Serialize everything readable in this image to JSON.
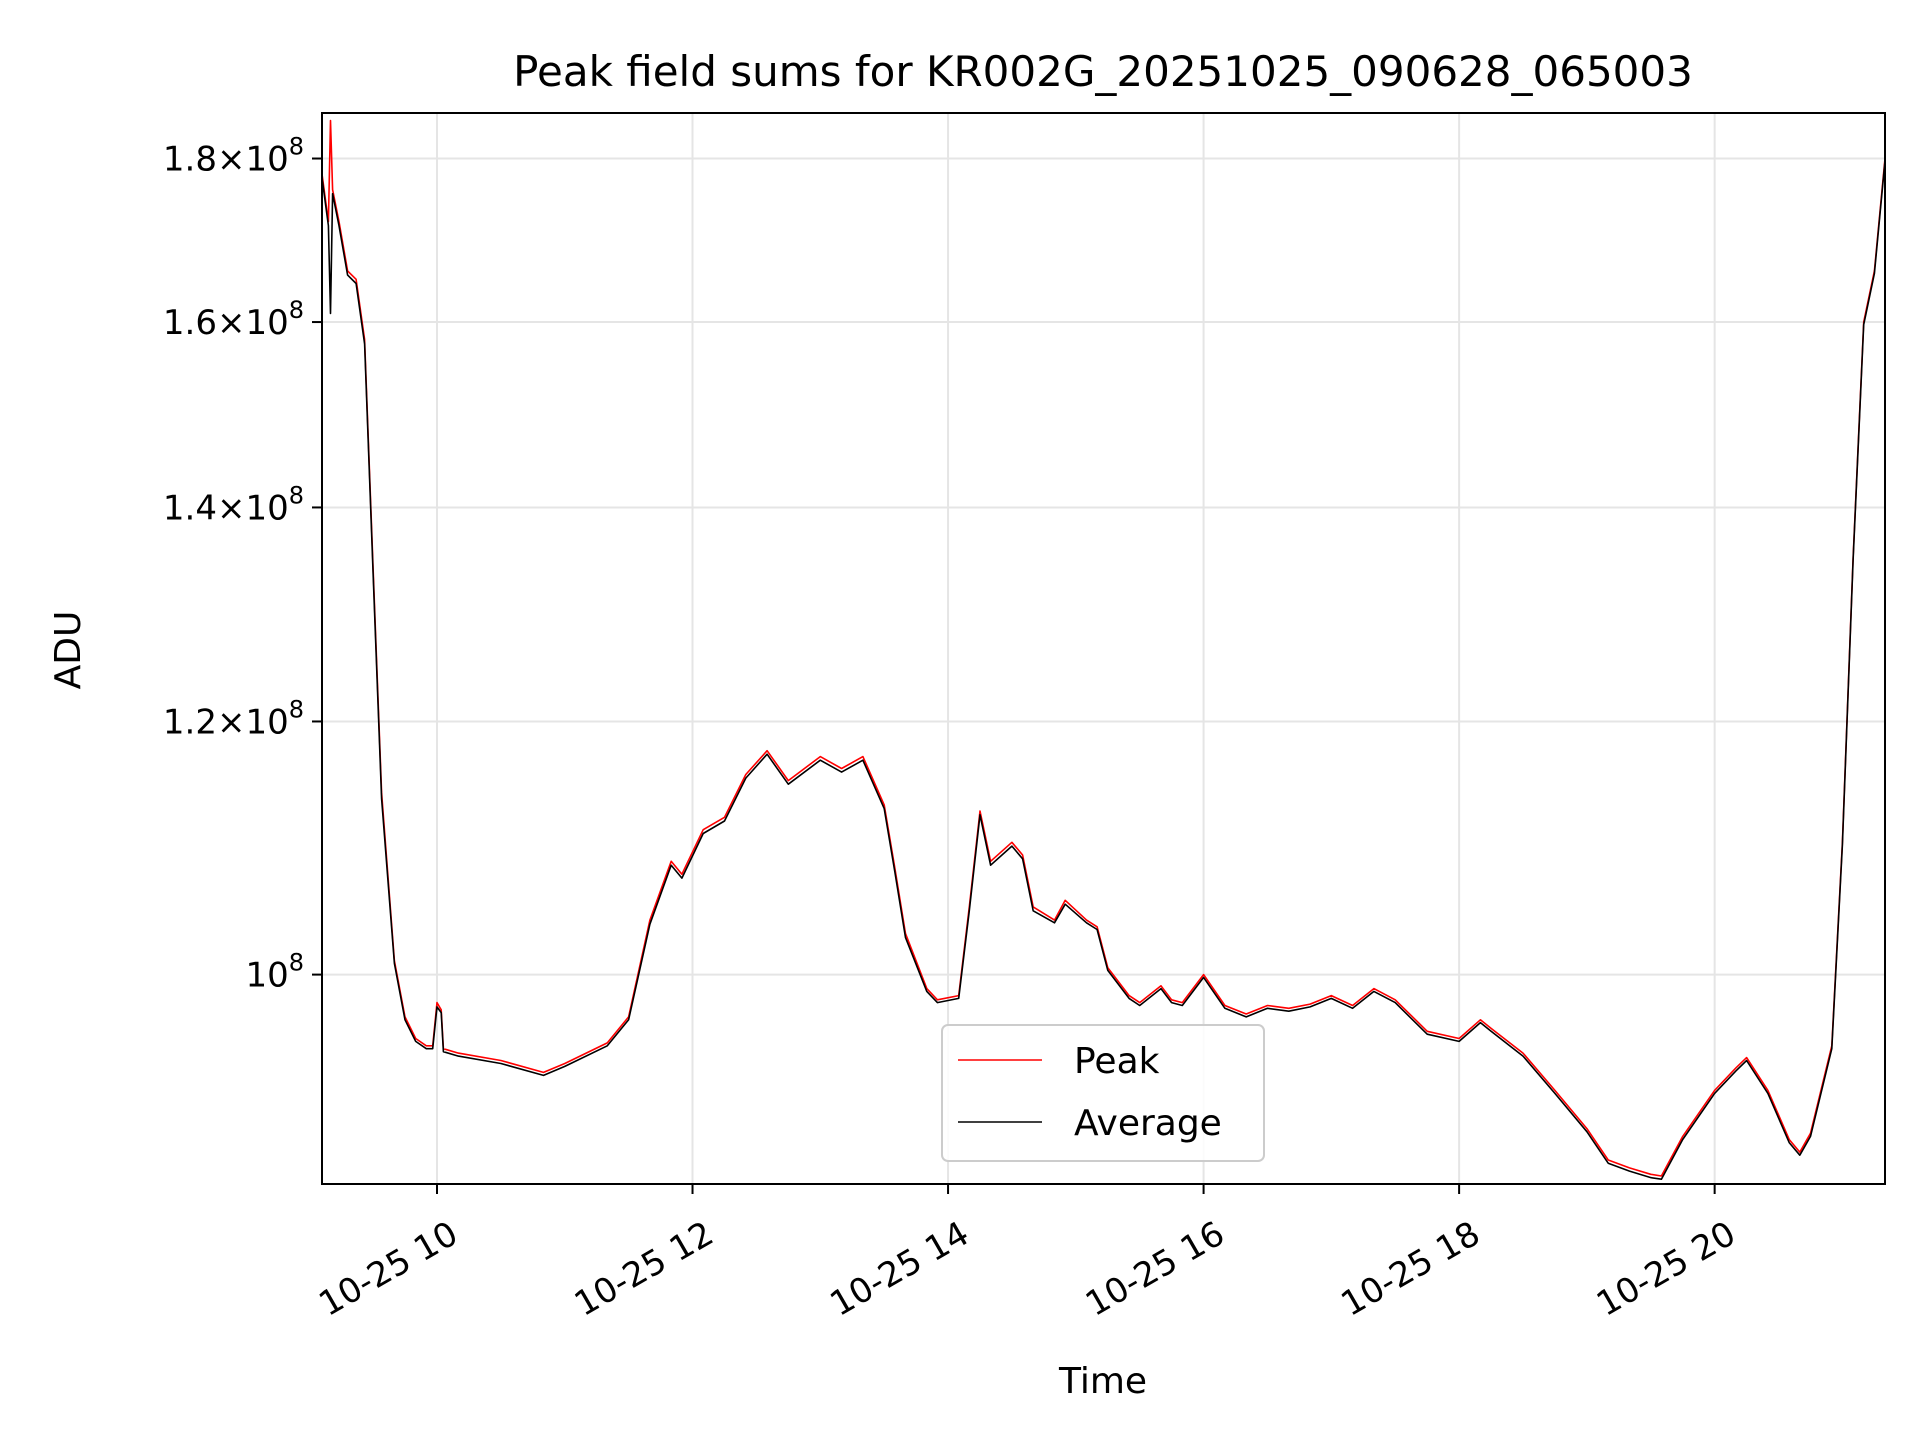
{
  "chart_data": {
    "type": "line",
    "title": "Peak field sums for KR002G_20251025_090628_065003",
    "xlabel": "Time",
    "ylabel": "ADU",
    "y_scale": "log",
    "grid": true,
    "legend_position": "lower center",
    "xlim": [
      "2025-10-25 09:06",
      "2025-10-25 21:20"
    ],
    "ylim": [
      86000000,
      186000000
    ],
    "x_ticks": [
      {
        "value": "2025-10-25 10:00",
        "label": "10-25 10"
      },
      {
        "value": "2025-10-25 12:00",
        "label": "10-25 12"
      },
      {
        "value": "2025-10-25 14:00",
        "label": "10-25 14"
      },
      {
        "value": "2025-10-25 16:00",
        "label": "10-25 16"
      },
      {
        "value": "2025-10-25 18:00",
        "label": "10-25 18"
      },
      {
        "value": "2025-10-25 20:00",
        "label": "10-25 20"
      }
    ],
    "y_ticks": [
      {
        "value": 100000000,
        "mantissa": "",
        "exponent": "8"
      },
      {
        "value": 120000000,
        "mantissa": "1.2",
        "exponent": "8"
      },
      {
        "value": 140000000,
        "mantissa": "1.4",
        "exponent": "8"
      },
      {
        "value": 160000000,
        "mantissa": "1.6",
        "exponent": "8"
      },
      {
        "value": 180000000,
        "mantissa": "1.8",
        "exponent": "8"
      }
    ],
    "x": [
      "2025-10-25 09:06",
      "2025-10-25 09:09",
      "2025-10-25 09:10",
      "2025-10-25 09:11",
      "2025-10-25 09:14",
      "2025-10-25 09:18",
      "2025-10-25 09:22",
      "2025-10-25 09:26",
      "2025-10-25 09:30",
      "2025-10-25 09:34",
      "2025-10-25 09:40",
      "2025-10-25 09:45",
      "2025-10-25 09:50",
      "2025-10-25 09:55",
      "2025-10-25 09:58",
      "2025-10-25 10:00",
      "2025-10-25 10:02",
      "2025-10-25 10:03",
      "2025-10-25 10:10",
      "2025-10-25 10:30",
      "2025-10-25 10:50",
      "2025-10-25 11:00",
      "2025-10-25 11:20",
      "2025-10-25 11:30",
      "2025-10-25 11:40",
      "2025-10-25 11:50",
      "2025-10-25 11:55",
      "2025-10-25 12:05",
      "2025-10-25 12:15",
      "2025-10-25 12:25",
      "2025-10-25 12:35",
      "2025-10-25 12:45",
      "2025-10-25 13:00",
      "2025-10-25 13:10",
      "2025-10-25 13:20",
      "2025-10-25 13:30",
      "2025-10-25 13:35",
      "2025-10-25 13:40",
      "2025-10-25 13:50",
      "2025-10-25 13:55",
      "2025-10-25 14:05",
      "2025-10-25 14:10",
      "2025-10-25 14:15",
      "2025-10-25 14:20",
      "2025-10-25 14:30",
      "2025-10-25 14:35",
      "2025-10-25 14:40",
      "2025-10-25 14:50",
      "2025-10-25 14:55",
      "2025-10-25 15:05",
      "2025-10-25 15:10",
      "2025-10-25 15:15",
      "2025-10-25 15:25",
      "2025-10-25 15:30",
      "2025-10-25 15:40",
      "2025-10-25 15:45",
      "2025-10-25 15:50",
      "2025-10-25 16:00",
      "2025-10-25 16:10",
      "2025-10-25 16:20",
      "2025-10-25 16:30",
      "2025-10-25 16:40",
      "2025-10-25 16:50",
      "2025-10-25 17:00",
      "2025-10-25 17:10",
      "2025-10-25 17:20",
      "2025-10-25 17:30",
      "2025-10-25 17:45",
      "2025-10-25 18:00",
      "2025-10-25 18:10",
      "2025-10-25 18:15",
      "2025-10-25 18:30",
      "2025-10-25 18:45",
      "2025-10-25 19:00",
      "2025-10-25 19:10",
      "2025-10-25 19:20",
      "2025-10-25 19:30",
      "2025-10-25 19:35",
      "2025-10-25 19:45",
      "2025-10-25 20:00",
      "2025-10-25 20:10",
      "2025-10-25 20:15",
      "2025-10-25 20:25",
      "2025-10-25 20:35",
      "2025-10-25 20:40",
      "2025-10-25 20:45",
      "2025-10-25 20:55",
      "2025-10-25 21:00",
      "2025-10-25 21:05",
      "2025-10-25 21:10",
      "2025-10-25 21:15",
      "2025-10-25 21:20"
    ],
    "series": [
      {
        "name": "Peak",
        "color": "#ff0000",
        "values": [
          178000000,
          172000000,
          185000000,
          176000000,
          172000000,
          166000000,
          165000000,
          158000000,
          134000000,
          114000000,
          101000000,
          97000000,
          95500000,
          95000000,
          95000000,
          98000000,
          97500000,
          94800000,
          94500000,
          94000000,
          93200000,
          93800000,
          95200000,
          97000000,
          104000000,
          108500000,
          107500000,
          111000000,
          112000000,
          115500000,
          117500000,
          115000000,
          117000000,
          116000000,
          117000000,
          113000000,
          108000000,
          103000000,
          99000000,
          98200000,
          98500000,
          105000000,
          112500000,
          108500000,
          110000000,
          109000000,
          105000000,
          104000000,
          105500000,
          104000000,
          103500000,
          100500000,
          98500000,
          98000000,
          99200000,
          98200000,
          98000000,
          100000000,
          97800000,
          97200000,
          97800000,
          97600000,
          97900000,
          98500000,
          97800000,
          99000000,
          98200000,
          96000000,
          95500000,
          96800000,
          96200000,
          94500000,
          92000000,
          89500000,
          87500000,
          87000000,
          86600000,
          86500000,
          89000000,
          92000000,
          93500000,
          94200000,
          92000000,
          88800000,
          88000000,
          89200000,
          95000000,
          110000000,
          135000000,
          160000000,
          166000000,
          180000000
        ]
      },
      {
        "name": "Average",
        "color": "#000000",
        "values": [
          177500000,
          171500000,
          161000000,
          175500000,
          171500000,
          165500000,
          164500000,
          157500000,
          133500000,
          113500000,
          100800000,
          96800000,
          95300000,
          94800000,
          94800000,
          97700000,
          97300000,
          94600000,
          94300000,
          93800000,
          93000000,
          93600000,
          95000000,
          96800000,
          103700000,
          108200000,
          107200000,
          110700000,
          111700000,
          115200000,
          117200000,
          114700000,
          116700000,
          115700000,
          116700000,
          112700000,
          107700000,
          102700000,
          98800000,
          98000000,
          98300000,
          104700000,
          112200000,
          108200000,
          109700000,
          108700000,
          104700000,
          103800000,
          105200000,
          103800000,
          103300000,
          100300000,
          98300000,
          97800000,
          99000000,
          98000000,
          97800000,
          99800000,
          97600000,
          97000000,
          97600000,
          97400000,
          97700000,
          98300000,
          97600000,
          98800000,
          98000000,
          95800000,
          95300000,
          96600000,
          96000000,
          94300000,
          91800000,
          89300000,
          87300000,
          86800000,
          86400000,
          86300000,
          88800000,
          91800000,
          93300000,
          94000000,
          91800000,
          88600000,
          87800000,
          89000000,
          94800000,
          109800000,
          134800000,
          159700000,
          165700000,
          179700000
        ]
      }
    ]
  }
}
